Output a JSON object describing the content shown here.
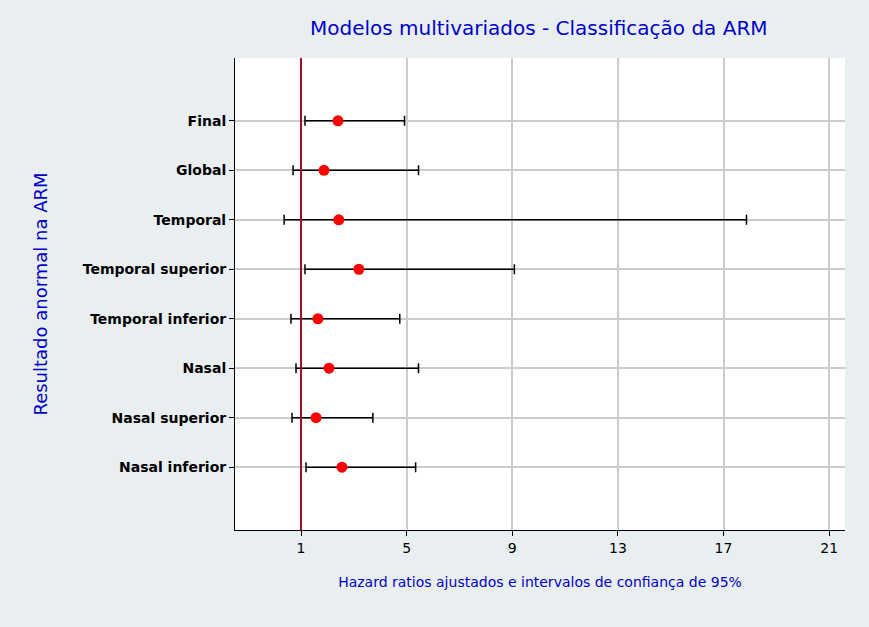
{
  "chart_data": {
    "type": "forest",
    "title": "Modelos multivariados - Classificação da ARM",
    "x_label": "Hazard ratios ajustados e intervalos de confiança de 95%",
    "y_label": "Resultado anormal na ARM",
    "categories": [
      "Final",
      "Global",
      "Temporal",
      "Temporal superior",
      "Temporal inferior",
      "Nasal",
      "Nasal superior",
      "Nasal inferior"
    ],
    "values": [
      2.4,
      1.87,
      2.43,
      3.19,
      1.64,
      2.06,
      1.57,
      2.55
    ],
    "ci_lower": [
      1.15,
      0.7,
      0.36,
      1.15,
      0.62,
      0.81,
      0.66,
      1.19
    ],
    "ci_upper": [
      4.92,
      5.45,
      17.87,
      9.08,
      4.74,
      5.45,
      3.72,
      5.34
    ],
    "reference_line": 1,
    "color": "#ff0000",
    "marker": "circle",
    "xlim": [
      -1.5,
      21.6
    ],
    "xticks": [
      1,
      5,
      9,
      13,
      17,
      21
    ],
    "grid": true
  }
}
